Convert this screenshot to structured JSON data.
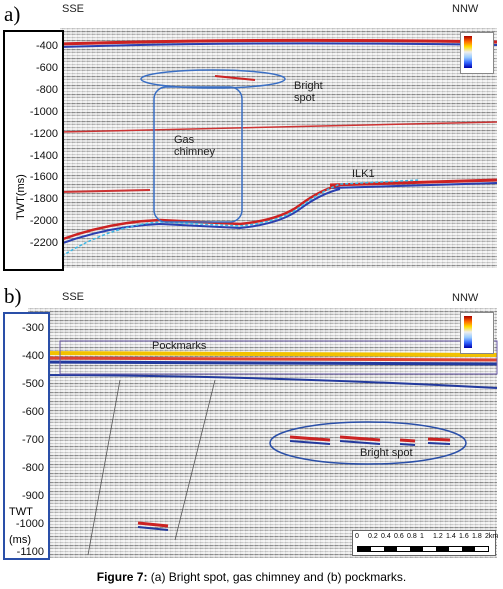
{
  "panel_a": {
    "label": "a)",
    "left_direction": "SSE",
    "right_direction": "NNW",
    "axis_ticks": [
      "-400",
      "-600",
      "-800",
      "-1000",
      "-1200",
      "-1400",
      "-1600",
      "-1800",
      "-2000",
      "-2200"
    ],
    "axis_title": "TWT(ms)",
    "bright_spot": "Bright spot",
    "gas_chimney": "Gas chimney",
    "horizon": "ILK1"
  },
  "panel_b": {
    "label": "b)",
    "left_direction": "SSE",
    "right_direction": "NNW",
    "axis_ticks": [
      "-300",
      "-400",
      "-500",
      "-600",
      "-700",
      "-800",
      "-900",
      "-1000",
      "-1100"
    ],
    "axis_title_lines": [
      "TWT",
      "(ms)"
    ],
    "pockmarks": "Pockmarks",
    "bright_spot": "Bright spot",
    "scale_bar": [
      "0",
      "0.2",
      "0.4",
      "0.6",
      "0.8",
      "1",
      "1.2",
      "1.4",
      "1.6",
      "1.8",
      "2km"
    ]
  },
  "caption": {
    "label": "Figure 7:",
    "text": "(a) Bright spot, gas chimney and (b) pockmarks."
  }
}
